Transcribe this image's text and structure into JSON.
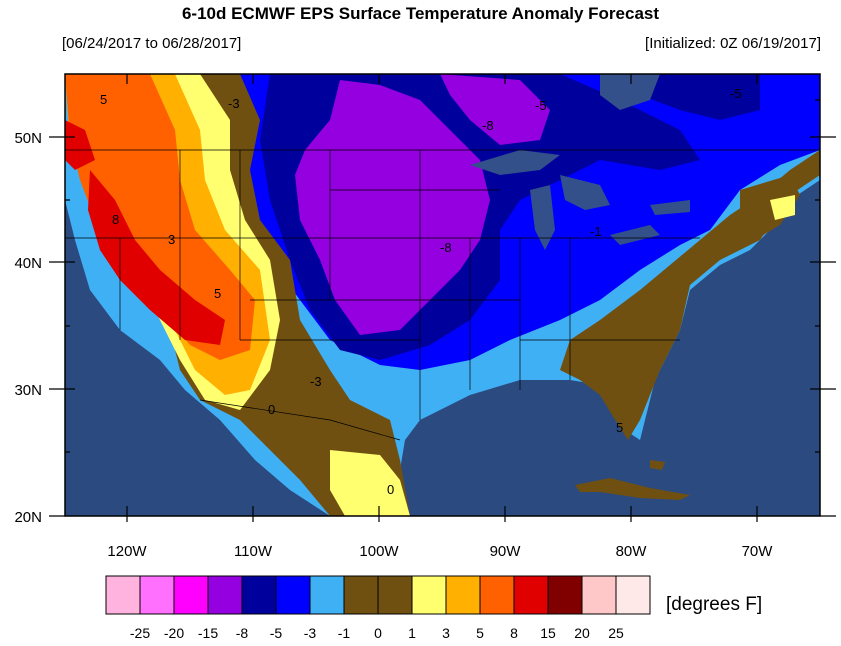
{
  "title": "6-10d ECMWF EPS Surface Temperature Anomaly Forecast",
  "valid_period": "[06/24/2017 to 06/28/2017]",
  "initialized": "[Initialized: 0Z 06/19/2017]",
  "lat_labels": [
    "50N",
    "40N",
    "30N",
    "20N"
  ],
  "lon_labels": [
    "120W",
    "110W",
    "100W",
    "90W",
    "80W",
    "70W"
  ],
  "colorbar": {
    "units": "[degrees F]",
    "boundaries": [
      "-25",
      "-20",
      "-15",
      "-8",
      "-5",
      "-3",
      "-1",
      "0",
      "1",
      "3",
      "5",
      "8",
      "15",
      "20",
      "25"
    ],
    "colors": [
      "#ffb3de",
      "#ff70ff",
      "#ff00ff",
      "#9400e0",
      "#00009c",
      "#0000ff",
      "#40b0f5",
      "#705010",
      "#705010",
      "#ffff70",
      "#ffb000",
      "#ff6000",
      "#e00000",
      "#800000",
      "#ffc8c8",
      "#ffe8e8"
    ]
  },
  "contour_labels": [
    "5",
    "8",
    "3",
    "5",
    "0",
    "0",
    "-3",
    "-8",
    "-8",
    "-5",
    "-3",
    "-5",
    "-1",
    "5"
  ],
  "colors": {
    "ocean": "#2b4a80",
    "lake": "#33508a"
  }
}
